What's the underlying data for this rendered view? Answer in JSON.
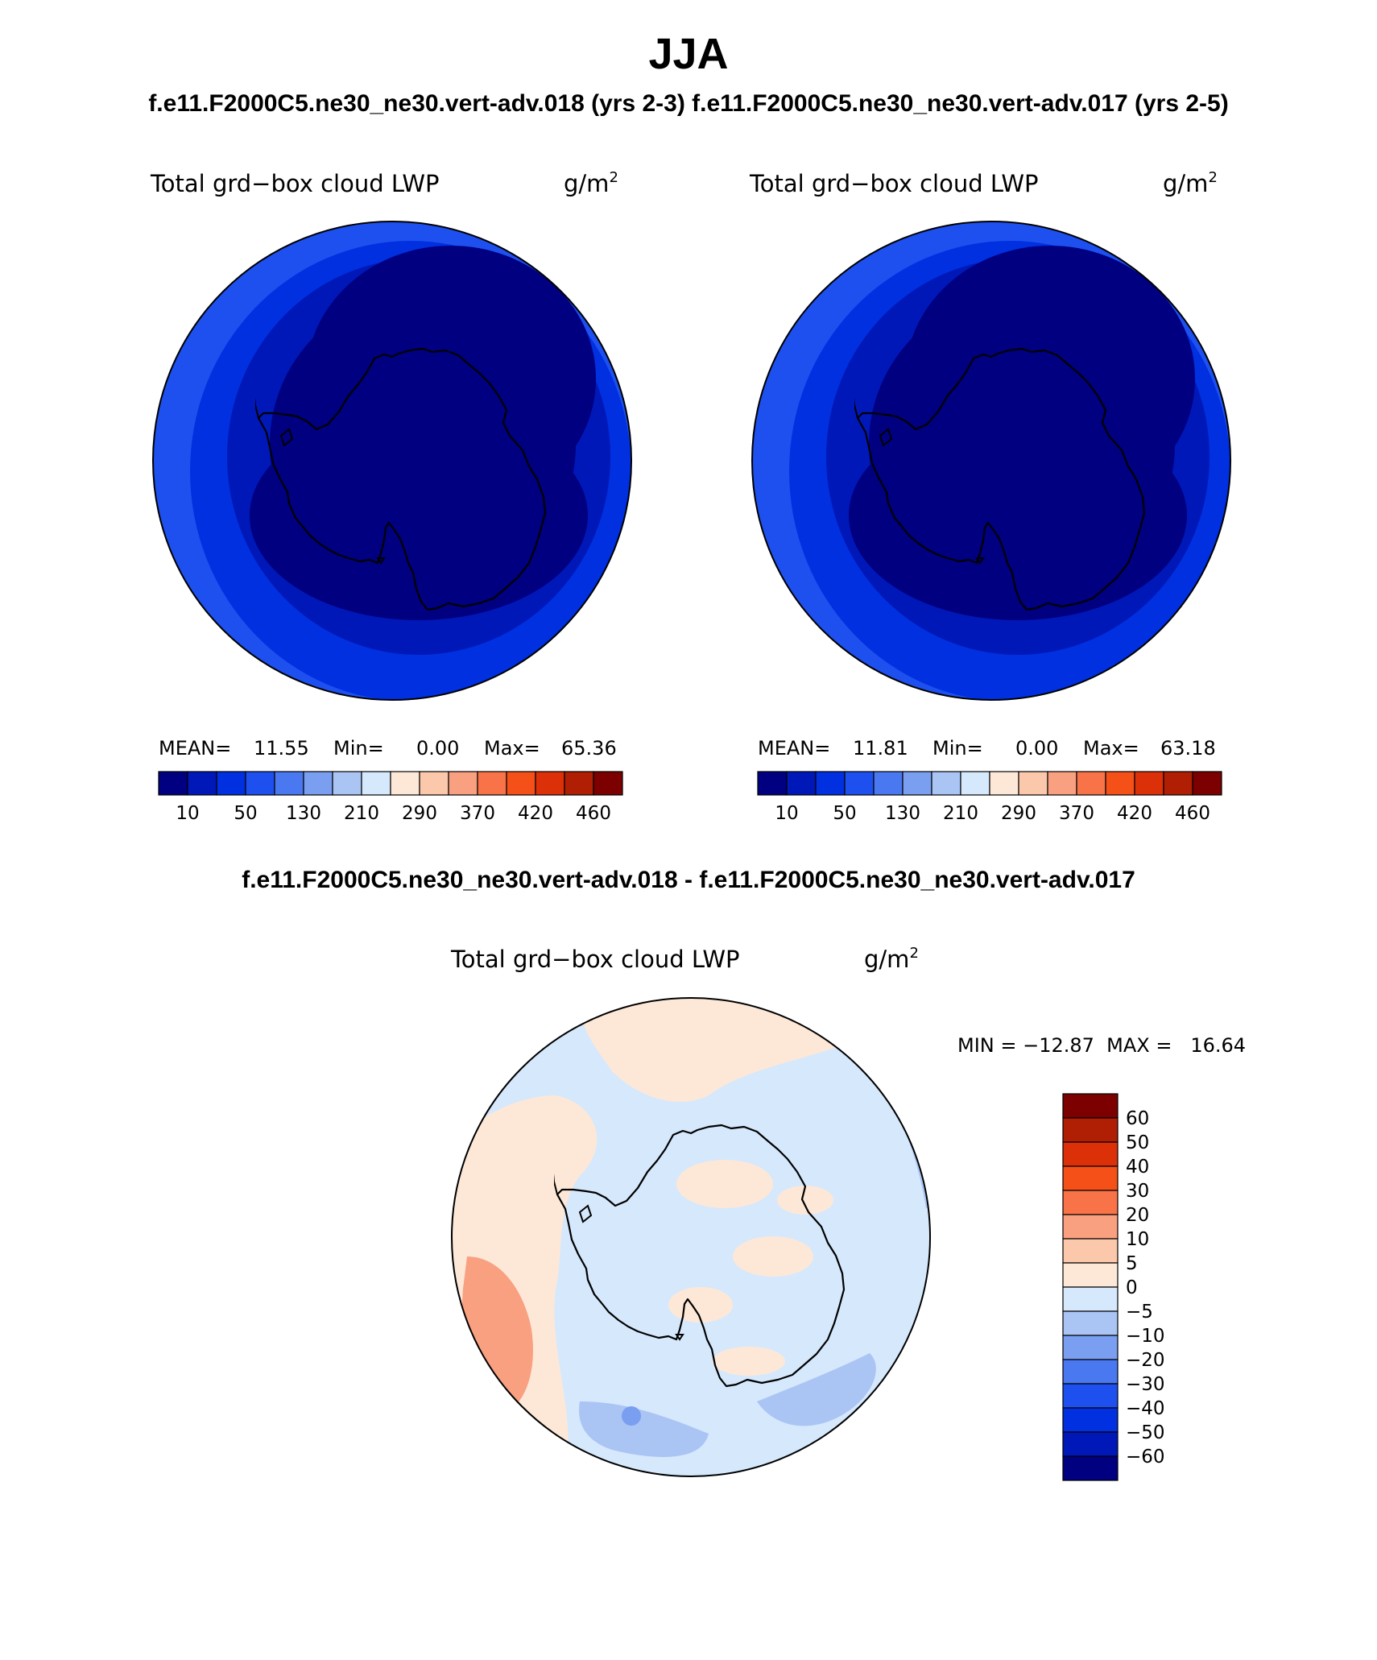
{
  "header": {
    "title": "JJA",
    "subtitle": "f.e11.F2000C5.ne30_ne30.vert-adv.018 (yrs 2-3)  f.e11.F2000C5.ne30_ne30.vert-adv.017 (yrs 2-5)",
    "diff_subtitle": "f.e11.F2000C5.ne30_ne30.vert-adv.018 - f.e11.F2000C5.ne30_ne30.vert-adv.017"
  },
  "panels": {
    "left": {
      "var_name": "Total grd−box cloud LWP",
      "units": "g/m",
      "units_sup": "2",
      "mean_label": "MEAN=",
      "mean_value": "11.55",
      "min_label": "Min=",
      "min_value": "0.00",
      "max_label": "Max=",
      "max_value": "65.36"
    },
    "right": {
      "var_name": "Total grd−box cloud LWP",
      "units": "g/m",
      "units_sup": "2",
      "mean_label": "MEAN=",
      "mean_value": "11.81",
      "min_label": "Min=",
      "min_value": "0.00",
      "max_label": "Max=",
      "max_value": "63.18"
    },
    "diff": {
      "var_name": "Total grd−box cloud LWP",
      "units": "g/m",
      "units_sup": "2",
      "minmax": "MIN = −12.87  MAX =   16.64"
    }
  },
  "colorbars": {
    "abs": {
      "colors": [
        "#000080",
        "#0018b8",
        "#0030e0",
        "#1e50f0",
        "#4a78f0",
        "#7a9ef0",
        "#aac4f4",
        "#d6e8fc",
        "#fde8d8",
        "#fbc8ac",
        "#f8a080",
        "#f87448",
        "#f45018",
        "#dc3008",
        "#b01e04",
        "#7c0000"
      ],
      "labels": [
        "10",
        "50",
        "130",
        "210",
        "290",
        "370",
        "420",
        "460"
      ]
    },
    "diff": {
      "colors": [
        "#7c0000",
        "#b01e04",
        "#dc3008",
        "#f45018",
        "#f87448",
        "#f8a080",
        "#fbc8ac",
        "#fde8d8",
        "#d6e8fc",
        "#aac4f4",
        "#7a9ef0",
        "#4a78f0",
        "#1e50f0",
        "#0030e0",
        "#0018b8",
        "#000080"
      ],
      "labels": [
        "60",
        "50",
        "40",
        "30",
        "20",
        "10",
        "5",
        "0",
        "−5",
        "−10",
        "−20",
        "−30",
        "−40",
        "−50",
        "−60"
      ]
    }
  },
  "map_colors": {
    "deep": "#000080",
    "mid": "#0018b8",
    "ring": "#0030e0",
    "outer": "#1e50f0",
    "diff_base": "#d6e8fc",
    "diff_pos": "#fde8d8",
    "diff_pos2": "#f8a080",
    "diff_neg": "#aac4f4",
    "diff_neg2": "#7a9ef0"
  }
}
